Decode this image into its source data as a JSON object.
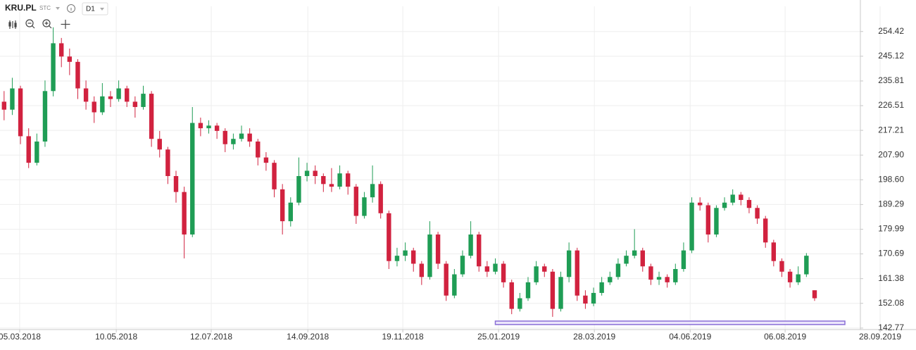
{
  "toolbar": {
    "symbol": "KRU.PL",
    "market": "STC",
    "interval": "D1"
  },
  "chart_data": {
    "type": "candlestick",
    "up_color": "#1f9d55",
    "down_color": "#d1223f",
    "grid": true,
    "ylim": [
      142.2,
      263.9
    ],
    "yticks": [
      254.42,
      245.12,
      235.81,
      226.51,
      217.21,
      {
        "value": 207.9,
        "label": "207.90"
      },
      {
        "value": 198.6,
        "label": "198.60"
      },
      189.29,
      179.99,
      170.69,
      161.38,
      152.08,
      142.77
    ],
    "xlim": [
      0,
      107.5
    ],
    "xticks": [
      {
        "value": 2.4,
        "label": "05.03.2018"
      },
      {
        "value": 14.2,
        "label": "10.05.2018"
      },
      {
        "value": 25.8,
        "label": "12.07.2018"
      },
      {
        "value": 37.6,
        "label": "14.09.2018"
      },
      {
        "value": 49.2,
        "label": "19.11.2018"
      },
      {
        "value": 60.9,
        "label": "25.01.2019"
      },
      {
        "value": 72.6,
        "label": "28.03.2019"
      },
      {
        "value": 84.3,
        "label": "04.06.2019"
      },
      {
        "value": 95.9,
        "label": "06.08.2019"
      },
      {
        "value": 107.5,
        "label": "28.09.2019"
      }
    ],
    "zone": {
      "color": "#8a6fd6",
      "xlim": [
        60.5,
        103.2
      ],
      "ylim": [
        144.1,
        145.4
      ]
    },
    "ohlc": [
      [
        228,
        232,
        221,
        225
      ],
      [
        225,
        237,
        223,
        233
      ],
      [
        233,
        234,
        212,
        215
      ],
      [
        215,
        218,
        203,
        205
      ],
      [
        205,
        216,
        204,
        213
      ],
      [
        213,
        236,
        211,
        232
      ],
      [
        232,
        256,
        230,
        250
      ],
      [
        250,
        252,
        241,
        245
      ],
      [
        245,
        248,
        238,
        243
      ],
      [
        243,
        244,
        229,
        233
      ],
      [
        233,
        236,
        225,
        228
      ],
      [
        228,
        230,
        220,
        224
      ],
      [
        224,
        235,
        223,
        230
      ],
      [
        230,
        232,
        226,
        229
      ],
      [
        229,
        236,
        228,
        233
      ],
      [
        233,
        234,
        226,
        228
      ],
      [
        228,
        230,
        222,
        226
      ],
      [
        226,
        234,
        225,
        231
      ],
      [
        231,
        232,
        211,
        214
      ],
      [
        214,
        217,
        207,
        210
      ],
      [
        210,
        211,
        197,
        200
      ],
      [
        200,
        202,
        190,
        194
      ],
      [
        194,
        196,
        169,
        178
      ],
      [
        178,
        226,
        177,
        220
      ],
      [
        220,
        222,
        215,
        218
      ],
      [
        218,
        221,
        216,
        219
      ],
      [
        219,
        220,
        214,
        217
      ],
      [
        217,
        218,
        209,
        212
      ],
      [
        212,
        216,
        210,
        214
      ],
      [
        214,
        219,
        213,
        216
      ],
      [
        216,
        218,
        211,
        213
      ],
      [
        213,
        214,
        204,
        207
      ],
      [
        207,
        209,
        202,
        205
      ],
      [
        205,
        206,
        192,
        195
      ],
      [
        195,
        197,
        178,
        183
      ],
      [
        183,
        192,
        181,
        190
      ],
      [
        190,
        207,
        189,
        200
      ],
      [
        200,
        205,
        198,
        202
      ],
      [
        202,
        204,
        197,
        200
      ],
      [
        200,
        201,
        194,
        197
      ],
      [
        197,
        203,
        194,
        196
      ],
      [
        196,
        204,
        195,
        201
      ],
      [
        201,
        202,
        193,
        196
      ],
      [
        196,
        197,
        182,
        185
      ],
      [
        185,
        194,
        184,
        192
      ],
      [
        192,
        204,
        190,
        197
      ],
      [
        197,
        198,
        184,
        186
      ],
      [
        186,
        187,
        165,
        168
      ],
      [
        168,
        173,
        166,
        170
      ],
      [
        170,
        175,
        168,
        172
      ],
      [
        172,
        173,
        164,
        167
      ],
      [
        167,
        168,
        159,
        162
      ],
      [
        162,
        183,
        161,
        178
      ],
      [
        178,
        179,
        165,
        167
      ],
      [
        167,
        168,
        153,
        155
      ],
      [
        155,
        165,
        154,
        163
      ],
      [
        163,
        172,
        162,
        170
      ],
      [
        170,
        183,
        169,
        178
      ],
      [
        178,
        179,
        164,
        166
      ],
      [
        166,
        168,
        162,
        164
      ],
      [
        164,
        169,
        163,
        167
      ],
      [
        167,
        168,
        158,
        160
      ],
      [
        160,
        161,
        148,
        150
      ],
      [
        150,
        156,
        149,
        154
      ],
      [
        154,
        162,
        153,
        160
      ],
      [
        160,
        168,
        159,
        166
      ],
      [
        166,
        167,
        162,
        164
      ],
      [
        164,
        165,
        147,
        150
      ],
      [
        150,
        164,
        149,
        162
      ],
      [
        162,
        175,
        160,
        172
      ],
      [
        172,
        173,
        153,
        155
      ],
      [
        155,
        157,
        150,
        152
      ],
      [
        152,
        158,
        151,
        156
      ],
      [
        156,
        162,
        155,
        160
      ],
      [
        160,
        164,
        159,
        162
      ],
      [
        162,
        169,
        161,
        167
      ],
      [
        167,
        172,
        166,
        170
      ],
      [
        170,
        180,
        169,
        172
      ],
      [
        172,
        173,
        164,
        166
      ],
      [
        166,
        167,
        159,
        161
      ],
      [
        161,
        164,
        159,
        162
      ],
      [
        162,
        163,
        158,
        160
      ],
      [
        160,
        167,
        159,
        165
      ],
      [
        165,
        175,
        164,
        172
      ],
      [
        172,
        192,
        171,
        190
      ],
      [
        190,
        192,
        187,
        189
      ],
      [
        189,
        190,
        175,
        178
      ],
      [
        178,
        189,
        177,
        188
      ],
      [
        188,
        192,
        187,
        190
      ],
      [
        190,
        195,
        189,
        193
      ],
      [
        193,
        194,
        189,
        191
      ],
      [
        191,
        192,
        186,
        188
      ],
      [
        188,
        189,
        182,
        184
      ],
      [
        184,
        185,
        173,
        175
      ],
      [
        175,
        176,
        166,
        168
      ],
      [
        168,
        169,
        162,
        164
      ],
      [
        164,
        165,
        158,
        160
      ],
      [
        160,
        166,
        159,
        163
      ],
      [
        163,
        171,
        162,
        170
      ],
      [
        157,
        157,
        153,
        154
      ]
    ]
  }
}
